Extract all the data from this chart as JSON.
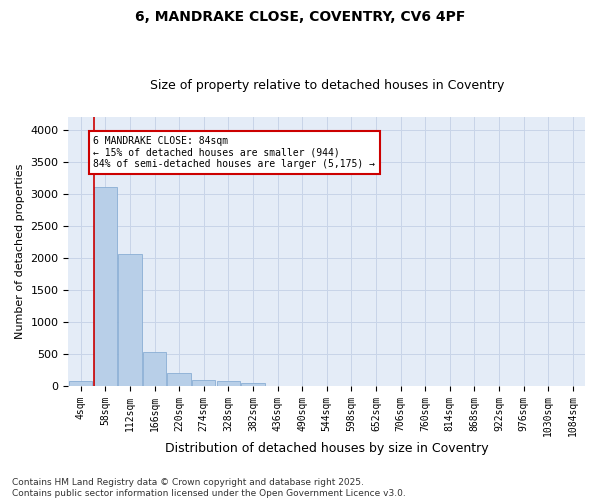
{
  "title": "6, MANDRAKE CLOSE, COVENTRY, CV6 4PF",
  "subtitle": "Size of property relative to detached houses in Coventry",
  "xlabel": "Distribution of detached houses by size in Coventry",
  "ylabel": "Number of detached properties",
  "bar_labels": [
    "4sqm",
    "58sqm",
    "112sqm",
    "166sqm",
    "220sqm",
    "274sqm",
    "328sqm",
    "382sqm",
    "436sqm",
    "490sqm",
    "544sqm",
    "598sqm",
    "652sqm",
    "706sqm",
    "760sqm",
    "814sqm",
    "868sqm",
    "922sqm",
    "976sqm",
    "1030sqm",
    "1084sqm"
  ],
  "bar_values": [
    70,
    3100,
    2050,
    520,
    190,
    80,
    75,
    40,
    0,
    0,
    0,
    0,
    0,
    0,
    0,
    0,
    0,
    0,
    0,
    0,
    0
  ],
  "bar_color": "#b8cfe8",
  "bar_edge_color": "#8aaed4",
  "grid_color": "#c8d4e8",
  "bg_color": "#e4ecf7",
  "vline_color": "#cc0000",
  "vline_x_index": 1.0,
  "annotation_text": "6 MANDRAKE CLOSE: 84sqm\n← 15% of detached houses are smaller (944)\n84% of semi-detached houses are larger (5,175) →",
  "annotation_box_color": "#cc0000",
  "ylim": [
    0,
    4200
  ],
  "yticks": [
    0,
    500,
    1000,
    1500,
    2000,
    2500,
    3000,
    3500,
    4000
  ],
  "footer1": "Contains HM Land Registry data © Crown copyright and database right 2025.",
  "footer2": "Contains public sector information licensed under the Open Government Licence v3.0.",
  "title_fontsize": 10,
  "subtitle_fontsize": 9,
  "tick_fontsize": 7,
  "ylabel_fontsize": 8,
  "xlabel_fontsize": 9,
  "footer_fontsize": 6.5
}
